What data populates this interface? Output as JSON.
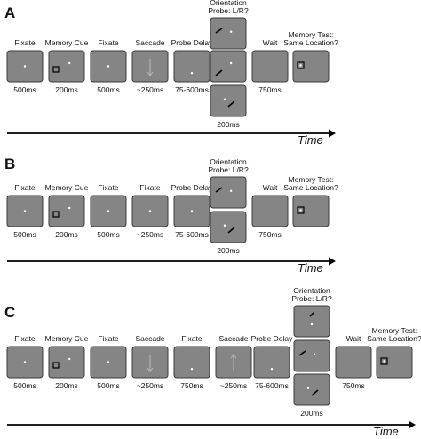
{
  "panels": [
    {
      "letter": "A",
      "before": [
        {
          "label": [
            "Fixate"
          ],
          "duration": "500ms"
        },
        {
          "label": [
            "Memory Cue"
          ],
          "duration": "200ms"
        },
        {
          "label": [
            "Fixate"
          ],
          "duration": "500ms"
        },
        {
          "label": [
            "Saccade"
          ],
          "duration": "~250ms"
        },
        {
          "label": [
            "Probe Delay"
          ],
          "duration": "75-600ms"
        }
      ],
      "probe": {
        "label": [
          "Orientation",
          "Probe: L/R?"
        ],
        "duration": "200ms"
      },
      "after": [
        {
          "label": [
            "Wait"
          ],
          "duration": "750ms"
        },
        {
          "label": [
            "Memory Test:",
            "Same Location?"
          ]
        }
      ],
      "time": "Time"
    },
    {
      "letter": "B",
      "before": [
        {
          "label": [
            "Fixate"
          ],
          "duration": "500ms"
        },
        {
          "label": [
            "Memory Cue"
          ],
          "duration": "200ms"
        },
        {
          "label": [
            "Fixate"
          ],
          "duration": "500ms"
        },
        {
          "label": [
            "Fixate"
          ],
          "duration": "~250ms"
        },
        {
          "label": [
            "Probe Delay"
          ],
          "duration": "75-600ms"
        }
      ],
      "probe": {
        "label": [
          "Orientation",
          "Probe: L/R?"
        ],
        "duration": "200ms"
      },
      "after": [
        {
          "label": [
            "Wait"
          ],
          "duration": "750ms"
        },
        {
          "label": [
            "Memory Test:",
            "Same Location?"
          ]
        }
      ],
      "time": "Time"
    },
    {
      "letter": "C",
      "before": [
        {
          "label": [
            "Fixate"
          ],
          "duration": "500ms"
        },
        {
          "label": [
            "Memory Cue"
          ],
          "duration": "200ms"
        },
        {
          "label": [
            "Fixate"
          ],
          "duration": "500ms"
        },
        {
          "label": [
            "Saccade"
          ],
          "duration": "~250ms"
        },
        {
          "label": [
            "Fixate"
          ],
          "duration": "750ms"
        },
        {
          "label": [
            "Saccade"
          ],
          "duration": "~250ms"
        },
        {
          "label": [
            "Probe Delay"
          ],
          "duration": "75-600ms"
        }
      ],
      "probe": {
        "label": [
          "Orientation",
          "Probe: L/R?"
        ],
        "duration": "200ms"
      },
      "after": [
        {
          "label": [
            "Wait"
          ],
          "duration": "750ms"
        },
        {
          "label": [
            "Memory Test:",
            "Same Location?"
          ]
        }
      ],
      "time": "Time"
    }
  ]
}
